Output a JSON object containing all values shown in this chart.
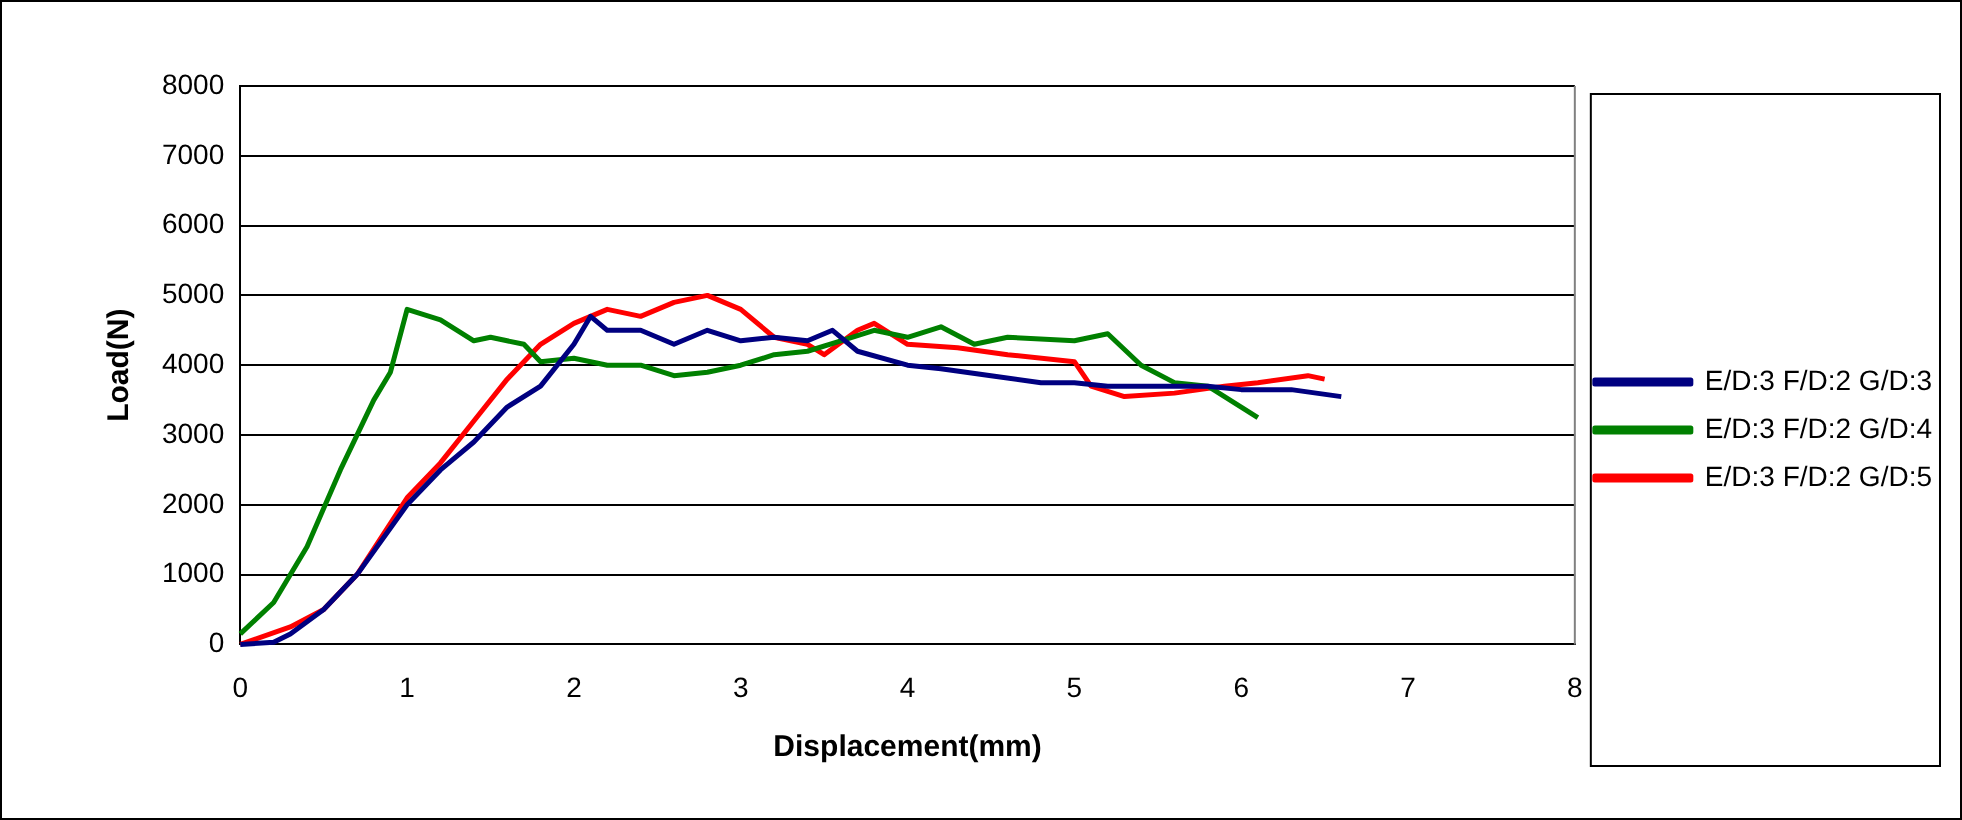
{
  "chart_data": {
    "type": "line",
    "xlabel": "Displacement(mm)",
    "ylabel": "Load(N)",
    "xlim": [
      0,
      8
    ],
    "xticks": [
      0,
      1,
      2,
      3,
      4,
      5,
      6,
      7,
      8
    ],
    "ylim": [
      0,
      8000
    ],
    "yticks": [
      0,
      1000,
      2000,
      3000,
      4000,
      5000,
      6000,
      7000,
      8000
    ],
    "grid": "y",
    "legend": "right",
    "marker": "none",
    "line_style": "solid",
    "series": [
      {
        "name": "E/D:3 F/D:2 G/D:3",
        "color": "#000080",
        "x": [
          0,
          0.2,
          0.3,
          0.5,
          0.7,
          1.0,
          1.2,
          1.4,
          1.6,
          1.8,
          2.0,
          2.1,
          2.2,
          2.4,
          2.6,
          2.8,
          3.0,
          3.2,
          3.4,
          3.55,
          3.7,
          4.0,
          4.2,
          4.5,
          4.8,
          5.0,
          5.2,
          5.5,
          5.8,
          6.0,
          6.3,
          6.6
        ],
        "values": [
          0,
          30,
          150,
          500,
          1000,
          2000,
          2500,
          2900,
          3400,
          3700,
          4300,
          4700,
          4500,
          4500,
          4300,
          4500,
          4350,
          4400,
          4350,
          4500,
          4200,
          4000,
          3950,
          3850,
          3750,
          3750,
          3700,
          3700,
          3700,
          3650,
          3650,
          3550
        ]
      },
      {
        "name": "E/D:3 F/D:2 G/D:4",
        "color": "#008000",
        "x": [
          0,
          0.2,
          0.4,
          0.6,
          0.8,
          0.9,
          1.0,
          1.2,
          1.4,
          1.5,
          1.7,
          1.8,
          2.0,
          2.2,
          2.4,
          2.6,
          2.8,
          3.0,
          3.2,
          3.4,
          3.6,
          3.8,
          4.0,
          4.2,
          4.4,
          4.6,
          5.0,
          5.2,
          5.4,
          5.6,
          5.8,
          6.0,
          6.1
        ],
        "values": [
          150,
          600,
          1400,
          2500,
          3500,
          3900,
          4800,
          4650,
          4350,
          4400,
          4300,
          4050,
          4100,
          4000,
          4000,
          3850,
          3900,
          4000,
          4150,
          4200,
          4350,
          4500,
          4400,
          4550,
          4300,
          4400,
          4350,
          4450,
          4000,
          3750,
          3700,
          3400,
          3250
        ]
      },
      {
        "name": "E/D:3 F/D:2 G/D:5",
        "color": "#ff0000",
        "x": [
          0,
          0.3,
          0.5,
          0.7,
          1.0,
          1.2,
          1.4,
          1.6,
          1.8,
          2.0,
          2.2,
          2.4,
          2.6,
          2.8,
          3.0,
          3.2,
          3.4,
          3.5,
          3.7,
          3.8,
          4.0,
          4.3,
          4.6,
          5.0,
          5.1,
          5.3,
          5.6,
          5.9,
          6.1,
          6.4,
          6.5
        ],
        "values": [
          0,
          250,
          500,
          1000,
          2100,
          2600,
          3200,
          3800,
          4300,
          4600,
          4800,
          4700,
          4900,
          5000,
          4800,
          4400,
          4300,
          4150,
          4500,
          4600,
          4300,
          4250,
          4150,
          4050,
          3700,
          3550,
          3600,
          3700,
          3750,
          3850,
          3800
        ]
      }
    ]
  }
}
